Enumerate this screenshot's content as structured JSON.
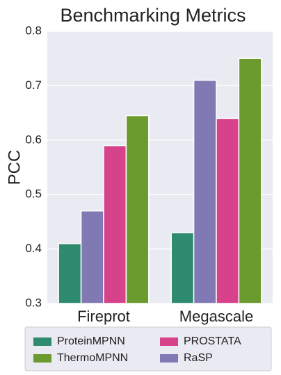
{
  "chart_data": {
    "type": "bar",
    "title": "Benchmarking Metrics",
    "y_label": "PCC",
    "categories": [
      "Fireprot",
      "Megascale"
    ],
    "series": [
      {
        "name": "ProteinMPNN",
        "color": "#2e8b6e",
        "values": [
          0.41,
          0.43
        ]
      },
      {
        "name": "RaSP",
        "color": "#8079b3",
        "values": [
          0.47,
          0.71
        ]
      },
      {
        "name": "PROSTATA",
        "color": "#d6438a",
        "values": [
          0.59,
          0.64
        ]
      },
      {
        "name": "ThermoMPNN",
        "color": "#6b9a2e",
        "values": [
          0.645,
          0.75
        ]
      }
    ],
    "ylim": [
      0.3,
      0.8
    ],
    "yticks": [
      0.3,
      0.4,
      0.5,
      0.6,
      0.7,
      0.8
    ],
    "grid": true
  }
}
